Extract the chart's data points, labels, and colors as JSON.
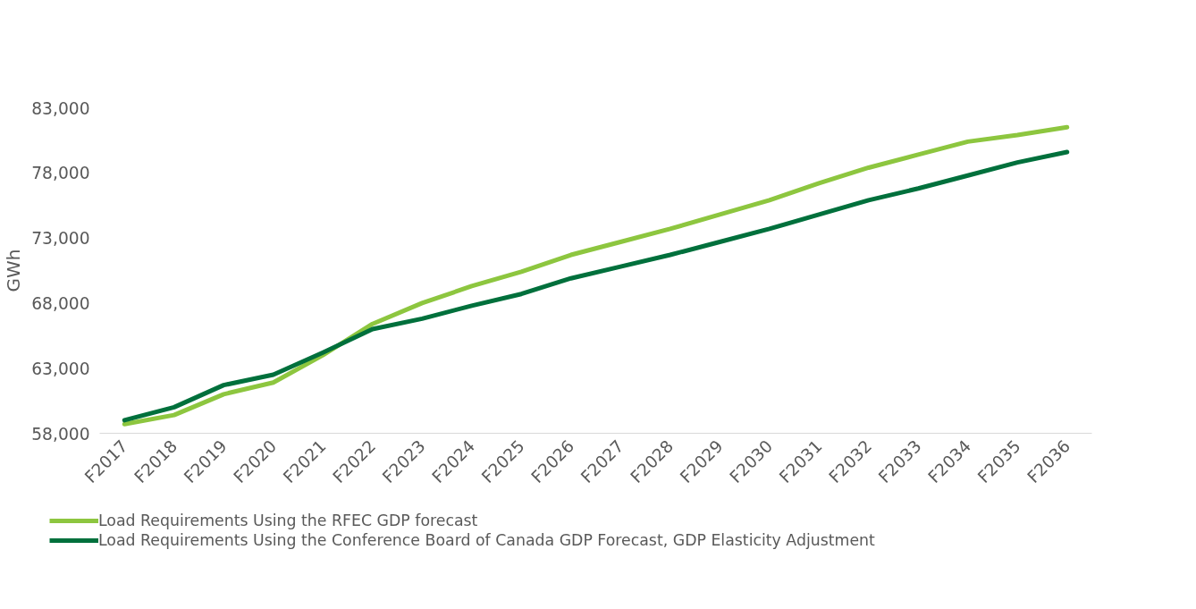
{
  "chart_data": {
    "type": "line",
    "ylabel": "GWh",
    "categories": [
      "F2017",
      "F2018",
      "F2019",
      "F2020",
      "F2021",
      "F2022",
      "F2023",
      "F2024",
      "F2025",
      "F2026",
      "F2027",
      "F2028",
      "F2029",
      "F2030",
      "F2031",
      "F2032",
      "F2033",
      "F2034",
      "F2035",
      "F2036"
    ],
    "series": [
      {
        "name": "Load Requirements Using the RFEC GDP forecast",
        "color": "#8dc63f",
        "values": [
          58700,
          59400,
          61000,
          61900,
          64000,
          66400,
          68000,
          69300,
          70400,
          71700,
          72700,
          73700,
          74800,
          75900,
          77200,
          78400,
          79400,
          80400,
          80900,
          81500
        ]
      },
      {
        "name": "Load Requirements Using the Conference Board of Canada GDP Forecast, GDP Elasticity Adjustment",
        "color": "#00703c",
        "values": [
          59000,
          60000,
          61700,
          62500,
          64200,
          66000,
          66800,
          67800,
          68700,
          69900,
          70800,
          71700,
          72700,
          73700,
          74800,
          75900,
          76800,
          77800,
          78800,
          79600
        ]
      }
    ],
    "ylim": [
      58000,
      83000
    ],
    "yticks": [
      {
        "value": 58000,
        "label": "58,000"
      },
      {
        "value": 63000,
        "label": "63,000"
      },
      {
        "value": 68000,
        "label": "68,000"
      },
      {
        "value": 73000,
        "label": "73,000"
      },
      {
        "value": 78000,
        "label": "78,000"
      },
      {
        "value": 83000,
        "label": "83,000"
      }
    ],
    "grid": false,
    "legend": "bottom",
    "marker": "none",
    "line_style": "solid"
  }
}
